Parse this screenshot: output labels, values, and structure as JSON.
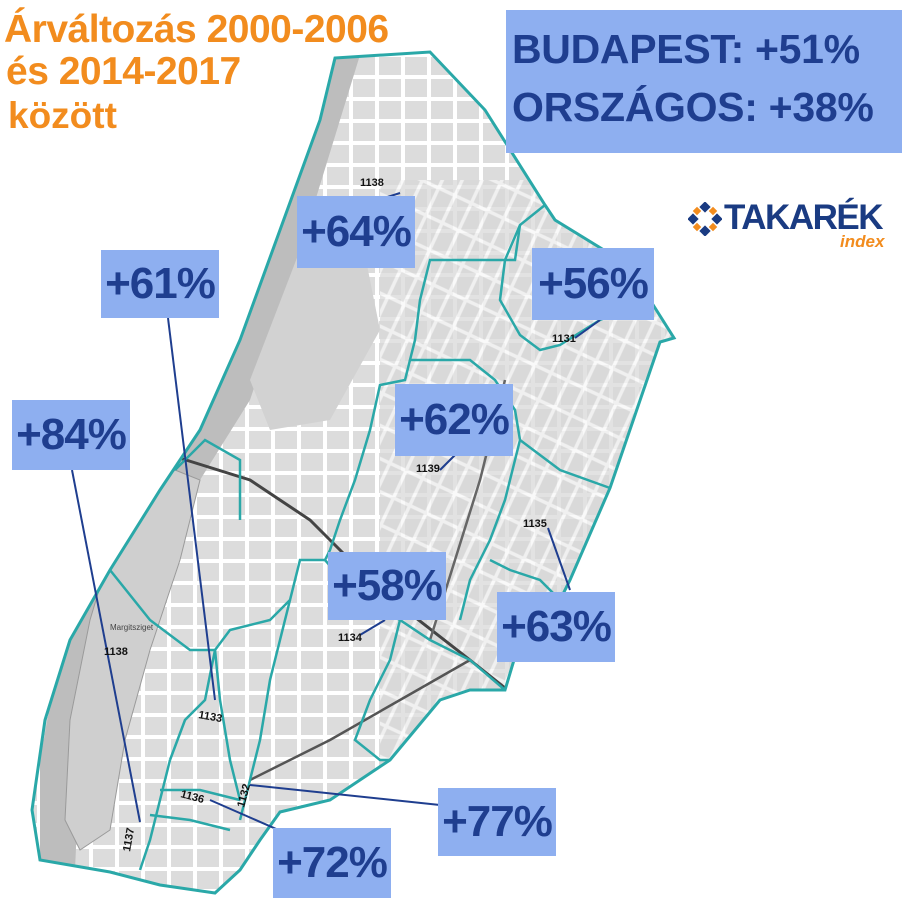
{
  "title": {
    "line1": "Árváltozás 2000-2006",
    "line2": "és 2014-2017",
    "line3": "között"
  },
  "summary": {
    "budapest": "BUDAPEST: +51%",
    "national": "ORSZÁGOS: +38%"
  },
  "logo": {
    "brand": "TAKARÉK",
    "sub": "index"
  },
  "map_labels": {
    "river_island": "1138",
    "north": "1138",
    "margitsziget": "Margitsziget"
  },
  "districts": [
    {
      "code": "1131",
      "change": "+56%"
    },
    {
      "code": "1133",
      "change": "+61%"
    },
    {
      "code": "1134",
      "change": "+58%"
    },
    {
      "code": "1135",
      "change": "+63%"
    },
    {
      "code": "1136",
      "change": "+72%"
    },
    {
      "code": "1137",
      "change": "+84%"
    },
    {
      "code": "1132",
      "change": "+77%"
    },
    {
      "code": "1138",
      "change": "+64%"
    },
    {
      "code": "1139",
      "change": "+62%"
    }
  ],
  "colors": {
    "title": "#f28c1e",
    "box_fill": "#8eaff0",
    "box_text": "#1f3e8f",
    "boundary": "#2aa8a8",
    "map_bg": "#e3e3e3"
  }
}
